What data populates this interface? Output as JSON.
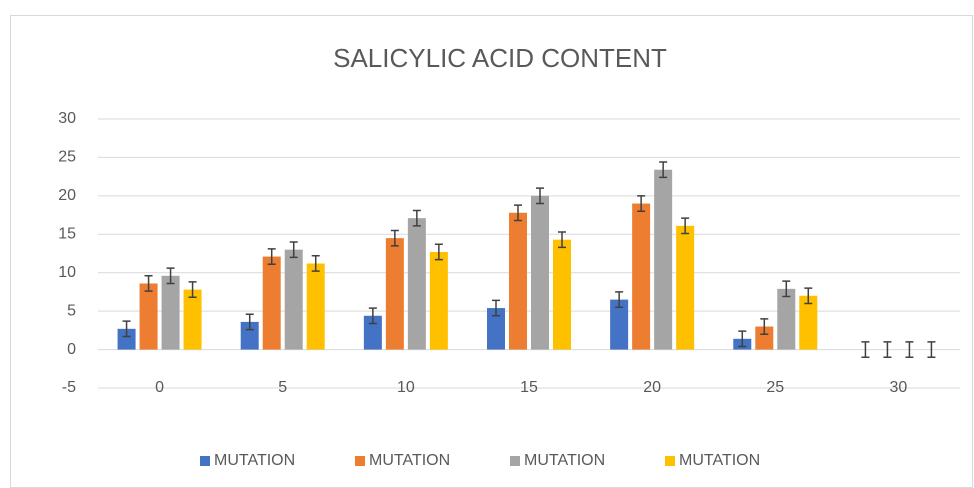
{
  "chart_data": {
    "type": "bar",
    "title": "SALICYLIC ACID CONTENT",
    "categories": [
      "0",
      "5",
      "10",
      "15",
      "20",
      "25",
      "30"
    ],
    "series": [
      {
        "name": "MUTATION",
        "color": "#4472c4",
        "values": [
          2.7,
          3.6,
          4.4,
          5.4,
          6.5,
          1.4,
          0
        ],
        "errors": [
          1,
          1,
          1,
          1,
          1,
          1,
          1
        ]
      },
      {
        "name": "MUTATION",
        "color": "#ed7d31",
        "values": [
          8.6,
          12.1,
          14.5,
          17.8,
          19.0,
          3.0,
          0
        ],
        "errors": [
          1,
          1,
          1,
          1,
          1,
          1,
          1
        ]
      },
      {
        "name": "MUTATION",
        "color": "#a5a5a5",
        "values": [
          9.6,
          13.0,
          17.1,
          20.0,
          23.4,
          7.9,
          0
        ],
        "errors": [
          1,
          1,
          1,
          1,
          1,
          1,
          1
        ]
      },
      {
        "name": "MUTATION",
        "color": "#ffc000",
        "values": [
          7.8,
          11.2,
          12.7,
          14.3,
          16.1,
          7.0,
          0
        ],
        "errors": [
          1,
          1,
          1,
          1,
          1,
          1,
          1
        ]
      }
    ],
    "ylim": [
      -5,
      30
    ],
    "yticks": [
      -5,
      0,
      5,
      10,
      15,
      20,
      25,
      30
    ],
    "grid": true,
    "legend": "bottom"
  }
}
